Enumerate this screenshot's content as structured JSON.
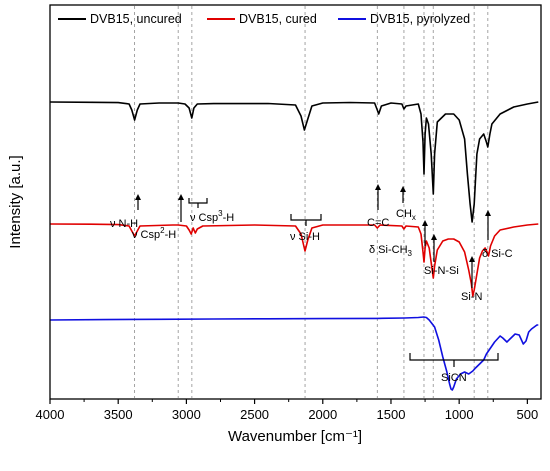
{
  "chart_data": {
    "type": "line",
    "xlabel": "Wavenumber [cm⁻¹]",
    "ylabel": "Intensity [a.u.]",
    "xlim": [
      4000,
      400
    ],
    "x_reversed": true,
    "x_ticks": [
      4000,
      3500,
      3000,
      2500,
      2000,
      1500,
      1000,
      500
    ],
    "y_tick_labels": false,
    "grid": false,
    "legend_position": "top",
    "series": [
      {
        "name": "DVB15, uncured",
        "color": "#000000",
        "baseline": 58,
        "points": [
          [
            4000,
            58
          ],
          [
            3700,
            58.3
          ],
          [
            3500,
            58.6
          ],
          [
            3420,
            60
          ],
          [
            3400,
            66
          ],
          [
            3380,
            76
          ],
          [
            3360,
            66
          ],
          [
            3340,
            60
          ],
          [
            3200,
            59
          ],
          [
            3060,
            59
          ],
          [
            3010,
            60
          ],
          [
            2980,
            64
          ],
          [
            2960,
            74
          ],
          [
            2945,
            64
          ],
          [
            2920,
            60
          ],
          [
            2800,
            59.6
          ],
          [
            2400,
            59.5
          ],
          [
            2200,
            61
          ],
          [
            2160,
            72
          ],
          [
            2135,
            86
          ],
          [
            2110,
            75
          ],
          [
            2080,
            62
          ],
          [
            2000,
            59
          ],
          [
            1800,
            58.5
          ],
          [
            1620,
            59
          ],
          [
            1600,
            66
          ],
          [
            1590,
            70
          ],
          [
            1570,
            62
          ],
          [
            1500,
            59
          ],
          [
            1420,
            60
          ],
          [
            1405,
            65
          ],
          [
            1390,
            62
          ],
          [
            1300,
            60
          ],
          [
            1280,
            70
          ],
          [
            1265,
            98
          ],
          [
            1258,
            130
          ],
          [
            1250,
            90
          ],
          [
            1240,
            74
          ],
          [
            1225,
            80
          ],
          [
            1205,
            110
          ],
          [
            1190,
            150
          ],
          [
            1180,
            110
          ],
          [
            1160,
            78
          ],
          [
            1100,
            70
          ],
          [
            1040,
            70
          ],
          [
            1000,
            76
          ],
          [
            960,
            95
          ],
          [
            940,
            130
          ],
          [
            920,
            160
          ],
          [
            905,
            178
          ],
          [
            890,
            160
          ],
          [
            870,
            110
          ],
          [
            850,
            95
          ],
          [
            820,
            90
          ],
          [
            800,
            98
          ],
          [
            790,
            103
          ],
          [
            775,
            90
          ],
          [
            760,
            80
          ],
          [
            700,
            70
          ],
          [
            600,
            63
          ],
          [
            500,
            60
          ],
          [
            420,
            58
          ]
        ]
      },
      {
        "name": "DVB15, cured",
        "color": "#e00000",
        "baseline": 180,
        "points": [
          [
            4000,
            180
          ],
          [
            3700,
            180.2
          ],
          [
            3500,
            180.6
          ],
          [
            3420,
            182
          ],
          [
            3400,
            187
          ],
          [
            3380,
            192
          ],
          [
            3360,
            187
          ],
          [
            3340,
            182
          ],
          [
            3100,
            181
          ],
          [
            3060,
            181
          ],
          [
            3000,
            182
          ],
          [
            2980,
            186
          ],
          [
            2965,
            190
          ],
          [
            2950,
            184
          ],
          [
            2935,
            189
          ],
          [
            2920,
            185
          ],
          [
            2880,
            182
          ],
          [
            2500,
            181
          ],
          [
            2200,
            182
          ],
          [
            2160,
            190
          ],
          [
            2130,
            207
          ],
          [
            2110,
            196
          ],
          [
            2080,
            184
          ],
          [
            2000,
            181
          ],
          [
            1620,
            181
          ],
          [
            1600,
            184
          ],
          [
            1580,
            181
          ],
          [
            1420,
            182
          ],
          [
            1405,
            185
          ],
          [
            1390,
            182
          ],
          [
            1300,
            183
          ],
          [
            1280,
            190
          ],
          [
            1265,
            208
          ],
          [
            1258,
            218
          ],
          [
            1250,
            204
          ],
          [
            1240,
            197
          ],
          [
            1220,
            204
          ],
          [
            1200,
            224
          ],
          [
            1190,
            234
          ],
          [
            1180,
            222
          ],
          [
            1160,
            206
          ],
          [
            1120,
            197
          ],
          [
            1080,
            195
          ],
          [
            1040,
            195
          ],
          [
            1000,
            198
          ],
          [
            960,
            208
          ],
          [
            930,
            226
          ],
          [
            910,
            240
          ],
          [
            900,
            252
          ],
          [
            890,
            246
          ],
          [
            870,
            230
          ],
          [
            850,
            214
          ],
          [
            830,
            207
          ],
          [
            810,
            204
          ],
          [
            795,
            208
          ],
          [
            785,
            212
          ],
          [
            770,
            202
          ],
          [
            740,
            192
          ],
          [
            700,
            186
          ],
          [
            600,
            183
          ],
          [
            500,
            181
          ],
          [
            420,
            180
          ]
        ]
      },
      {
        "name": "DVB15, pyrolyzed",
        "color": "#1010e0",
        "baseline": 274,
        "points": [
          [
            4000,
            276
          ],
          [
            3600,
            275.6
          ],
          [
            3200,
            275.3
          ],
          [
            2800,
            275
          ],
          [
            2400,
            274.8
          ],
          [
            2000,
            274.6
          ],
          [
            1600,
            274.4
          ],
          [
            1400,
            274
          ],
          [
            1300,
            273.5
          ],
          [
            1260,
            273
          ],
          [
            1240,
            273.5
          ],
          [
            1220,
            276
          ],
          [
            1180,
            283
          ],
          [
            1150,
            296
          ],
          [
            1120,
            313
          ],
          [
            1090,
            328
          ],
          [
            1070,
            340
          ],
          [
            1060,
            345
          ],
          [
            1050,
            346
          ],
          [
            1040,
            343
          ],
          [
            1020,
            335
          ],
          [
            990,
            330
          ],
          [
            960,
            328
          ],
          [
            930,
            330
          ],
          [
            900,
            327
          ],
          [
            880,
            324
          ],
          [
            850,
            320
          ],
          [
            820,
            316
          ],
          [
            800,
            310
          ],
          [
            770,
            304
          ],
          [
            740,
            298
          ],
          [
            700,
            292
          ],
          [
            680,
            294
          ],
          [
            650,
            298
          ],
          [
            620,
            294
          ],
          [
            590,
            290
          ],
          [
            560,
            291
          ],
          [
            530,
            300
          ],
          [
            510,
            297
          ],
          [
            490,
            288
          ],
          [
            470,
            285
          ],
          [
            450,
            283
          ],
          [
            430,
            281
          ],
          [
            420,
            281
          ]
        ]
      }
    ],
    "guide_lines": [
      3380,
      3060,
      2960,
      2130,
      1600,
      1405,
      1258,
      1190,
      890,
      790
    ],
    "annotations": [
      {
        "text": "ν N-H"
      },
      {
        "text": "ν Csp²-H"
      },
      {
        "text": "ν Csp³-H"
      },
      {
        "text": "ν Si-H"
      },
      {
        "text": "C=C"
      },
      {
        "text": "CHₓ"
      },
      {
        "text": "δ Si-CH₃"
      },
      {
        "text": "Si-N-Si"
      },
      {
        "text": "Si-N"
      },
      {
        "text": "δ Si-C"
      },
      {
        "text": "SiCN"
      }
    ]
  }
}
